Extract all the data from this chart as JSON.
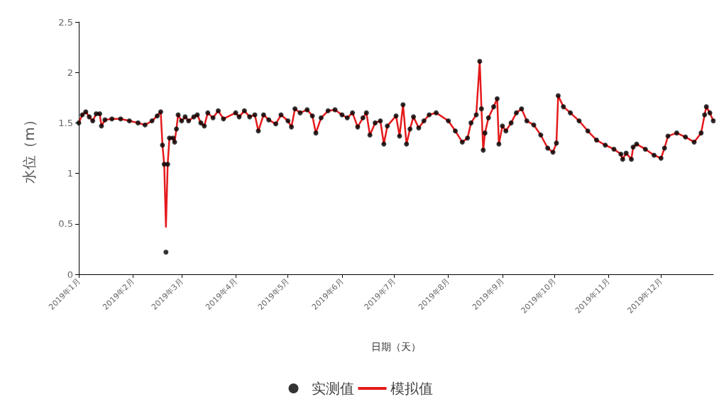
{
  "chart_data": {
    "type": "line",
    "xlabel": "日期（天）",
    "ylabel": "水位（m）",
    "x": [
      "2019-01-01",
      "2019-01-03",
      "2019-01-05",
      "2019-01-07",
      "2019-01-09",
      "2019-01-11",
      "2019-01-13",
      "2019-01-14",
      "2019-01-16",
      "2019-01-20",
      "2019-01-25",
      "2019-01-30",
      "2019-02-04",
      "2019-02-08",
      "2019-02-12",
      "2019-02-15",
      "2019-02-17",
      "2019-02-18",
      "2019-02-19",
      "2019-02-20",
      "2019-02-21",
      "2019-02-22",
      "2019-02-24",
      "2019-02-25",
      "2019-02-26",
      "2019-02-27",
      "2019-03-01",
      "2019-03-03",
      "2019-03-05",
      "2019-03-08",
      "2019-03-10",
      "2019-03-12",
      "2019-03-14",
      "2019-03-16",
      "2019-03-19",
      "2019-03-22",
      "2019-03-25",
      "2019-04-01",
      "2019-04-03",
      "2019-04-06",
      "2019-04-09",
      "2019-04-12",
      "2019-04-14",
      "2019-04-17",
      "2019-04-20",
      "2019-04-24",
      "2019-04-27",
      "2019-05-01",
      "2019-05-03",
      "2019-05-05",
      "2019-05-08",
      "2019-05-12",
      "2019-05-15",
      "2019-05-17",
      "2019-05-20",
      "2019-05-24",
      "2019-05-28",
      "2019-06-01",
      "2019-06-04",
      "2019-06-07",
      "2019-06-10",
      "2019-06-13",
      "2019-06-15",
      "2019-06-17",
      "2019-06-20",
      "2019-06-23",
      "2019-06-25",
      "2019-06-27",
      "2019-07-02",
      "2019-07-04",
      "2019-07-06",
      "2019-07-08",
      "2019-07-10",
      "2019-07-12",
      "2019-07-15",
      "2019-07-18",
      "2019-07-21",
      "2019-07-25",
      "2019-08-01",
      "2019-08-05",
      "2019-08-09",
      "2019-08-12",
      "2019-08-14",
      "2019-08-17",
      "2019-08-19",
      "2019-08-20",
      "2019-08-21",
      "2019-08-22",
      "2019-08-24",
      "2019-08-27",
      "2019-08-29",
      "2019-08-30",
      "2019-09-01",
      "2019-09-03",
      "2019-09-06",
      "2019-09-09",
      "2019-09-12",
      "2019-09-15",
      "2019-09-19",
      "2019-09-23",
      "2019-09-27",
      "2019-09-30",
      "2019-10-02",
      "2019-10-03",
      "2019-10-06",
      "2019-10-10",
      "2019-10-15",
      "2019-10-20",
      "2019-10-25",
      "2019-10-30",
      "2019-11-04",
      "2019-11-08",
      "2019-11-09",
      "2019-11-11",
      "2019-11-14",
      "2019-11-15",
      "2019-11-17",
      "2019-11-22",
      "2019-11-27",
      "2019-12-01",
      "2019-12-03",
      "2019-12-05",
      "2019-12-10",
      "2019-12-15",
      "2019-12-20",
      "2019-12-24",
      "2019-12-26",
      "2019-12-27",
      "2019-12-29",
      "2019-12-31"
    ],
    "series": [
      {
        "name": "实测值",
        "type": "scatter",
        "marker": "circle",
        "color": "#000000",
        "values": [
          1.5,
          1.58,
          1.61,
          1.56,
          1.52,
          1.59,
          1.59,
          1.47,
          1.53,
          1.54,
          1.54,
          1.52,
          1.5,
          1.48,
          1.52,
          1.57,
          1.61,
          1.28,
          1.09,
          0.22,
          1.09,
          1.35,
          1.35,
          1.31,
          1.44,
          1.58,
          1.52,
          1.56,
          1.52,
          1.56,
          1.58,
          1.5,
          1.47,
          1.6,
          1.55,
          1.62,
          1.54,
          1.6,
          1.56,
          1.62,
          1.56,
          1.58,
          1.42,
          1.58,
          1.53,
          1.49,
          1.58,
          1.52,
          1.46,
          1.64,
          1.6,
          1.63,
          1.57,
          1.4,
          1.55,
          1.62,
          1.63,
          1.58,
          1.55,
          1.6,
          1.46,
          1.55,
          1.6,
          1.38,
          1.5,
          1.52,
          1.29,
          1.47,
          1.57,
          1.37,
          1.68,
          1.29,
          1.44,
          1.56,
          1.45,
          1.52,
          1.58,
          1.6,
          1.52,
          1.42,
          1.31,
          1.35,
          1.5,
          1.58,
          2.11,
          1.64,
          1.23,
          1.4,
          1.55,
          1.66,
          1.74,
          1.29,
          1.47,
          1.42,
          1.5,
          1.6,
          1.64,
          1.52,
          1.48,
          1.38,
          1.25,
          1.21,
          1.3,
          1.77,
          1.66,
          1.6,
          1.52,
          1.42,
          1.33,
          1.28,
          1.24,
          1.19,
          1.14,
          1.2,
          1.14,
          1.26,
          1.29,
          1.24,
          1.18,
          1.15,
          1.25,
          1.37,
          1.4,
          1.36,
          1.31,
          1.4,
          1.58,
          1.66,
          1.6,
          1.52
        ]
      },
      {
        "name": "模拟值",
        "marker": "none",
        "color": "#e41a1c",
        "values": [
          1.5,
          1.58,
          1.61,
          1.56,
          1.52,
          1.59,
          1.59,
          1.47,
          1.53,
          1.54,
          1.54,
          1.52,
          1.5,
          1.48,
          1.52,
          1.57,
          1.61,
          1.28,
          1.09,
          0.47,
          1.09,
          1.35,
          1.35,
          1.31,
          1.44,
          1.58,
          1.52,
          1.56,
          1.52,
          1.56,
          1.58,
          1.5,
          1.47,
          1.6,
          1.55,
          1.62,
          1.54,
          1.6,
          1.56,
          1.62,
          1.56,
          1.58,
          1.42,
          1.58,
          1.53,
          1.49,
          1.58,
          1.52,
          1.46,
          1.64,
          1.6,
          1.63,
          1.57,
          1.4,
          1.55,
          1.62,
          1.63,
          1.58,
          1.55,
          1.6,
          1.46,
          1.55,
          1.6,
          1.38,
          1.5,
          1.52,
          1.29,
          1.47,
          1.57,
          1.37,
          1.68,
          1.29,
          1.44,
          1.56,
          1.45,
          1.52,
          1.58,
          1.6,
          1.52,
          1.42,
          1.31,
          1.35,
          1.5,
          1.58,
          2.11,
          1.64,
          1.23,
          1.4,
          1.55,
          1.66,
          1.74,
          1.29,
          1.47,
          1.42,
          1.5,
          1.6,
          1.64,
          1.52,
          1.48,
          1.38,
          1.25,
          1.21,
          1.3,
          1.77,
          1.66,
          1.6,
          1.52,
          1.42,
          1.33,
          1.28,
          1.24,
          1.19,
          1.14,
          1.2,
          1.14,
          1.26,
          1.29,
          1.24,
          1.18,
          1.15,
          1.25,
          1.37,
          1.4,
          1.36,
          1.31,
          1.4,
          1.58,
          1.66,
          1.6,
          1.52
        ]
      }
    ],
    "xlim": [
      "2019-01-01",
      "2019-12-31"
    ],
    "xticks": [
      {
        "value": "2019-01-01",
        "label": "2019年1月"
      },
      {
        "value": "2019-02-01",
        "label": "2019年2月"
      },
      {
        "value": "2019-03-01",
        "label": "2019年3月"
      },
      {
        "value": "2019-04-01",
        "label": "2019年4月"
      },
      {
        "value": "2019-05-01",
        "label": "2019年5月"
      },
      {
        "value": "2019-06-01",
        "label": "2019年6月"
      },
      {
        "value": "2019-07-01",
        "label": "2019年7月"
      },
      {
        "value": "2019-08-01",
        "label": "2019年8月"
      },
      {
        "value": "2019-09-01",
        "label": "2019年9月"
      },
      {
        "value": "2019-10-01",
        "label": "2019年10月"
      },
      {
        "value": "2019-11-01",
        "label": "2019年11月"
      },
      {
        "value": "2019-12-01",
        "label": "2019年12月"
      }
    ],
    "ylim": [
      0,
      2.5
    ],
    "yticks": [
      0,
      0.5,
      1,
      1.5,
      2,
      2.5
    ],
    "grid": false,
    "legend": "bottom"
  }
}
